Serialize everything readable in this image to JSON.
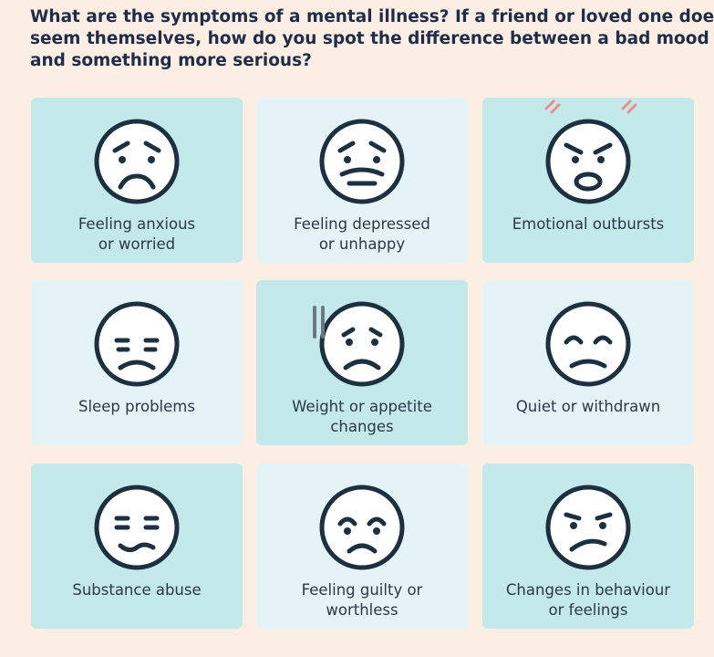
{
  "header": {
    "title_lines": [
      "What are the symptoms of a mental illness? If a friend or loved one doesn’t",
      "seem themselves, how do you spot the difference between a bad mood",
      "and something more serious?"
    ]
  },
  "cards": [
    {
      "label_lines": [
        "Feeling anxious",
        "or worried"
      ]
    },
    {
      "label_lines": [
        "Feeling depressed",
        "or unhappy"
      ]
    },
    {
      "label_lines": [
        "Emotional outbursts"
      ]
    },
    {
      "label_lines": [
        "Sleep problems"
      ]
    },
    {
      "label_lines": [
        "Weight or appetite",
        "changes"
      ]
    },
    {
      "label_lines": [
        "Quiet or withdrawn"
      ]
    },
    {
      "label_lines": [
        "Substance abuse"
      ]
    },
    {
      "label_lines": [
        "Feeling guilty or",
        "worthless"
      ]
    },
    {
      "label_lines": [
        "Changes in behaviour",
        "or feelings"
      ]
    }
  ]
}
